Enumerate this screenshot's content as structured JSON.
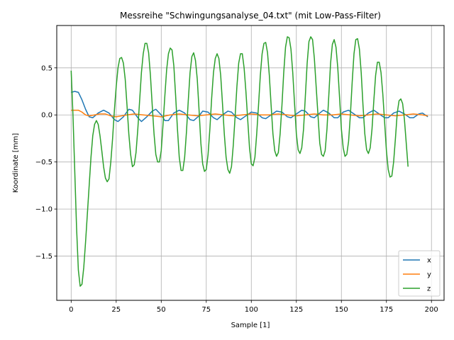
{
  "chart_data": {
    "type": "line",
    "title": "Messreihe \"Schwingungsanalyse_04.txt\" (mit Low-Pass-Filter)",
    "xlabel": "Sample [1]",
    "ylabel": "Koordinate [mm]",
    "xlim": [
      -8,
      207
    ],
    "ylim": [
      -1.97,
      0.95
    ],
    "xticks": [
      0,
      25,
      50,
      75,
      100,
      125,
      150,
      175,
      200
    ],
    "xtick_labels": [
      "0",
      "25",
      "50",
      "75",
      "100",
      "125",
      "150",
      "175",
      "200"
    ],
    "yticks": [
      -1.5,
      -1.0,
      -0.5,
      0.0,
      0.5
    ],
    "ytick_labels": [
      "−1.5",
      "−1.0",
      "−0.5",
      "0.0",
      "0.5"
    ],
    "grid": true,
    "legend_position": "lower-right",
    "series": [
      {
        "name": "x",
        "color": "#1f77b4",
        "points": [
          [
            0,
            0.24
          ],
          [
            2,
            0.25
          ],
          [
            4,
            0.24
          ],
          [
            6,
            0.16
          ],
          [
            8,
            0.06
          ],
          [
            10,
            -0.02
          ],
          [
            12,
            -0.03
          ],
          [
            15,
            0.02
          ],
          [
            18,
            0.05
          ],
          [
            21,
            0.02
          ],
          [
            24,
            -0.05
          ],
          [
            26,
            -0.07
          ],
          [
            29,
            -0.02
          ],
          [
            32,
            0.06
          ],
          [
            34,
            0.05
          ],
          [
            37,
            -0.03
          ],
          [
            39,
            -0.07
          ],
          [
            42,
            -0.02
          ],
          [
            45,
            0.04
          ],
          [
            47,
            0.06
          ],
          [
            50,
            0.0
          ],
          [
            52,
            -0.06
          ],
          [
            54,
            -0.06
          ],
          [
            57,
            0.02
          ],
          [
            60,
            0.05
          ],
          [
            63,
            0.02
          ],
          [
            66,
            -0.05
          ],
          [
            68,
            -0.06
          ],
          [
            71,
            -0.01
          ],
          [
            73,
            0.04
          ],
          [
            76,
            0.03
          ],
          [
            79,
            -0.03
          ],
          [
            81,
            -0.05
          ],
          [
            84,
            0.0
          ],
          [
            87,
            0.04
          ],
          [
            89,
            0.03
          ],
          [
            92,
            -0.03
          ],
          [
            94,
            -0.05
          ],
          [
            97,
            -0.01
          ],
          [
            100,
            0.03
          ],
          [
            103,
            0.02
          ],
          [
            106,
            -0.03
          ],
          [
            108,
            -0.04
          ],
          [
            111,
            0.0
          ],
          [
            114,
            0.04
          ],
          [
            117,
            0.03
          ],
          [
            120,
            -0.02
          ],
          [
            122,
            -0.03
          ],
          [
            125,
            0.01
          ],
          [
            128,
            0.05
          ],
          [
            130,
            0.04
          ],
          [
            133,
            -0.02
          ],
          [
            135,
            -0.03
          ],
          [
            138,
            0.02
          ],
          [
            140,
            0.05
          ],
          [
            143,
            0.02
          ],
          [
            146,
            -0.03
          ],
          [
            148,
            -0.03
          ],
          [
            151,
            0.03
          ],
          [
            154,
            0.05
          ],
          [
            157,
            0.01
          ],
          [
            160,
            -0.03
          ],
          [
            162,
            -0.03
          ],
          [
            165,
            0.02
          ],
          [
            168,
            0.05
          ],
          [
            171,
            0.01
          ],
          [
            174,
            -0.03
          ],
          [
            176,
            -0.03
          ],
          [
            179,
            0.02
          ],
          [
            182,
            0.04
          ],
          [
            185,
            0.01
          ],
          [
            188,
            -0.03
          ],
          [
            190,
            -0.03
          ],
          [
            193,
            0.01
          ],
          [
            195,
            0.02
          ],
          [
            198,
            -0.02
          ]
        ]
      },
      {
        "name": "y",
        "color": "#ff7f0e",
        "points": [
          [
            0,
            0.05
          ],
          [
            2,
            0.05
          ],
          [
            4,
            0.05
          ],
          [
            6,
            0.03
          ],
          [
            8,
            0.0
          ],
          [
            10,
            -0.01
          ],
          [
            13,
            0.0
          ],
          [
            16,
            0.01
          ],
          [
            19,
            0.01
          ],
          [
            22,
            -0.01
          ],
          [
            25,
            -0.02
          ],
          [
            28,
            -0.01
          ],
          [
            31,
            0.0
          ],
          [
            35,
            0.01
          ],
          [
            40,
            0.0
          ],
          [
            45,
            -0.01
          ],
          [
            50,
            -0.02
          ],
          [
            55,
            0.0
          ],
          [
            60,
            0.01
          ],
          [
            65,
            0.0
          ],
          [
            70,
            -0.01
          ],
          [
            75,
            0.0
          ],
          [
            80,
            0.01
          ],
          [
            85,
            0.0
          ],
          [
            90,
            -0.01
          ],
          [
            95,
            0.0
          ],
          [
            100,
            0.01
          ],
          [
            105,
            0.0
          ],
          [
            110,
            0.0
          ],
          [
            115,
            0.01
          ],
          [
            120,
            0.0
          ],
          [
            125,
            -0.01
          ],
          [
            130,
            0.0
          ],
          [
            135,
            0.01
          ],
          [
            140,
            0.0
          ],
          [
            145,
            0.0
          ],
          [
            150,
            0.01
          ],
          [
            155,
            0.0
          ],
          [
            160,
            -0.01
          ],
          [
            165,
            0.0
          ],
          [
            170,
            0.01
          ],
          [
            175,
            0.0
          ],
          [
            180,
            -0.01
          ],
          [
            185,
            0.0
          ],
          [
            190,
            0.01
          ],
          [
            195,
            0.0
          ],
          [
            198,
            -0.01
          ]
        ]
      },
      {
        "name": "z",
        "color": "#2ca02c",
        "points": [
          [
            0,
            0.47
          ],
          [
            1,
            0.0
          ],
          [
            2,
            -0.6
          ],
          [
            3,
            -1.2
          ],
          [
            4,
            -1.65
          ],
          [
            5,
            -1.82
          ],
          [
            6,
            -1.8
          ],
          [
            7,
            -1.62
          ],
          [
            8,
            -1.35
          ],
          [
            9,
            -1.05
          ],
          [
            10,
            -0.75
          ],
          [
            11,
            -0.45
          ],
          [
            12,
            -0.22
          ],
          [
            13,
            -0.1
          ],
          [
            14,
            -0.06
          ],
          [
            15,
            -0.1
          ],
          [
            16,
            -0.22
          ],
          [
            17,
            -0.38
          ],
          [
            18,
            -0.55
          ],
          [
            19,
            -0.67
          ],
          [
            20,
            -0.71
          ],
          [
            21,
            -0.68
          ],
          [
            22,
            -0.5
          ],
          [
            23,
            -0.25
          ],
          [
            24,
            0.05
          ],
          [
            25,
            0.3
          ],
          [
            26,
            0.5
          ],
          [
            27,
            0.6
          ],
          [
            28,
            0.61
          ],
          [
            29,
            0.55
          ],
          [
            30,
            0.38
          ],
          [
            31,
            0.1
          ],
          [
            32,
            -0.2
          ],
          [
            33,
            -0.42
          ],
          [
            34,
            -0.55
          ],
          [
            35,
            -0.53
          ],
          [
            36,
            -0.4
          ],
          [
            37,
            -0.15
          ],
          [
            38,
            0.15
          ],
          [
            39,
            0.45
          ],
          [
            40,
            0.65
          ],
          [
            41,
            0.76
          ],
          [
            42,
            0.76
          ],
          [
            43,
            0.66
          ],
          [
            44,
            0.42
          ],
          [
            45,
            0.1
          ],
          [
            46,
            -0.2
          ],
          [
            47,
            -0.42
          ],
          [
            48,
            -0.5
          ],
          [
            49,
            -0.5
          ],
          [
            50,
            -0.38
          ],
          [
            51,
            -0.1
          ],
          [
            52,
            0.2
          ],
          [
            53,
            0.48
          ],
          [
            54,
            0.65
          ],
          [
            55,
            0.71
          ],
          [
            56,
            0.69
          ],
          [
            57,
            0.52
          ],
          [
            58,
            0.2
          ],
          [
            59,
            -0.15
          ],
          [
            60,
            -0.45
          ],
          [
            61,
            -0.59
          ],
          [
            62,
            -0.59
          ],
          [
            63,
            -0.45
          ],
          [
            64,
            -0.18
          ],
          [
            65,
            0.15
          ],
          [
            66,
            0.45
          ],
          [
            67,
            0.62
          ],
          [
            68,
            0.66
          ],
          [
            69,
            0.58
          ],
          [
            70,
            0.38
          ],
          [
            71,
            0.05
          ],
          [
            72,
            -0.3
          ],
          [
            73,
            -0.52
          ],
          [
            74,
            -0.6
          ],
          [
            75,
            -0.58
          ],
          [
            76,
            -0.42
          ],
          [
            77,
            -0.15
          ],
          [
            78,
            0.18
          ],
          [
            79,
            0.45
          ],
          [
            80,
            0.6
          ],
          [
            81,
            0.65
          ],
          [
            82,
            0.6
          ],
          [
            83,
            0.42
          ],
          [
            84,
            0.12
          ],
          [
            85,
            -0.2
          ],
          [
            86,
            -0.45
          ],
          [
            87,
            -0.58
          ],
          [
            88,
            -0.62
          ],
          [
            89,
            -0.55
          ],
          [
            90,
            -0.32
          ],
          [
            91,
            -0.02
          ],
          [
            92,
            0.3
          ],
          [
            93,
            0.55
          ],
          [
            94,
            0.65
          ],
          [
            95,
            0.65
          ],
          [
            96,
            0.5
          ],
          [
            97,
            0.25
          ],
          [
            98,
            -0.05
          ],
          [
            99,
            -0.35
          ],
          [
            100,
            -0.52
          ],
          [
            101,
            -0.54
          ],
          [
            102,
            -0.45
          ],
          [
            103,
            -0.2
          ],
          [
            104,
            0.1
          ],
          [
            105,
            0.42
          ],
          [
            106,
            0.65
          ],
          [
            107,
            0.76
          ],
          [
            108,
            0.77
          ],
          [
            109,
            0.66
          ],
          [
            110,
            0.42
          ],
          [
            111,
            0.1
          ],
          [
            112,
            -0.2
          ],
          [
            113,
            -0.38
          ],
          [
            114,
            -0.44
          ],
          [
            115,
            -0.4
          ],
          [
            116,
            -0.2
          ],
          [
            117,
            0.1
          ],
          [
            118,
            0.45
          ],
          [
            119,
            0.72
          ],
          [
            120,
            0.83
          ],
          [
            121,
            0.82
          ],
          [
            122,
            0.7
          ],
          [
            123,
            0.45
          ],
          [
            124,
            0.12
          ],
          [
            125,
            -0.2
          ],
          [
            126,
            -0.37
          ],
          [
            127,
            -0.41
          ],
          [
            128,
            -0.35
          ],
          [
            129,
            -0.15
          ],
          [
            130,
            0.2
          ],
          [
            131,
            0.55
          ],
          [
            132,
            0.78
          ],
          [
            133,
            0.83
          ],
          [
            134,
            0.8
          ],
          [
            135,
            0.6
          ],
          [
            136,
            0.3
          ],
          [
            137,
            0.0
          ],
          [
            138,
            -0.3
          ],
          [
            139,
            -0.42
          ],
          [
            140,
            -0.44
          ],
          [
            141,
            -0.38
          ],
          [
            142,
            -0.15
          ],
          [
            143,
            0.2
          ],
          [
            144,
            0.55
          ],
          [
            145,
            0.75
          ],
          [
            146,
            0.8
          ],
          [
            147,
            0.72
          ],
          [
            148,
            0.5
          ],
          [
            149,
            0.18
          ],
          [
            150,
            -0.15
          ],
          [
            151,
            -0.35
          ],
          [
            152,
            -0.44
          ],
          [
            153,
            -0.42
          ],
          [
            154,
            -0.28
          ],
          [
            155,
            0.0
          ],
          [
            156,
            0.35
          ],
          [
            157,
            0.65
          ],
          [
            158,
            0.8
          ],
          [
            159,
            0.81
          ],
          [
            160,
            0.7
          ],
          [
            161,
            0.45
          ],
          [
            162,
            0.1
          ],
          [
            163,
            -0.2
          ],
          [
            164,
            -0.37
          ],
          [
            165,
            -0.41
          ],
          [
            166,
            -0.35
          ],
          [
            167,
            -0.15
          ],
          [
            168,
            0.15
          ],
          [
            169,
            0.42
          ],
          [
            170,
            0.56
          ],
          [
            171,
            0.56
          ],
          [
            172,
            0.45
          ],
          [
            173,
            0.22
          ],
          [
            174,
            -0.08
          ],
          [
            175,
            -0.38
          ],
          [
            176,
            -0.58
          ],
          [
            177,
            -0.66
          ],
          [
            178,
            -0.65
          ],
          [
            179,
            -0.5
          ],
          [
            180,
            -0.25
          ],
          [
            181,
            0.02
          ],
          [
            182,
            0.15
          ],
          [
            183,
            0.17
          ],
          [
            184,
            0.12
          ],
          [
            185,
            -0.05
          ],
          [
            186,
            -0.3
          ],
          [
            187,
            -0.55
          ]
        ]
      }
    ]
  }
}
